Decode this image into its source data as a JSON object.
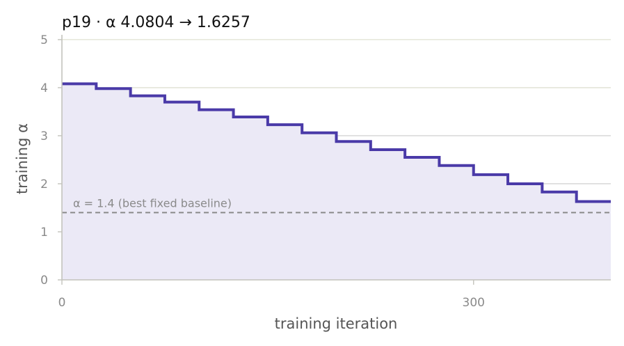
{
  "chart_data": {
    "type": "line",
    "step": true,
    "title": "p19   ·   α 4.0804 → 1.6257",
    "xlabel": "training iteration",
    "ylabel": "training α",
    "xlim": [
      0,
      400
    ],
    "ylim": [
      0,
      5.1
    ],
    "x_ticks": [
      0,
      300
    ],
    "y_ticks": [
      0,
      1,
      2,
      3,
      4,
      5
    ],
    "grid": "horizontal",
    "series": [
      {
        "color": "#4a3aa8",
        "fill_color": "#ebe9f6",
        "x": [
          0,
          25,
          50,
          75,
          100,
          125,
          150,
          175,
          200,
          225,
          250,
          275,
          300,
          325,
          350,
          375,
          400
        ],
        "y": [
          4.08,
          3.98,
          3.83,
          3.7,
          3.54,
          3.39,
          3.23,
          3.06,
          2.88,
          2.71,
          2.55,
          2.38,
          2.19,
          2.0,
          1.83,
          1.63,
          1.63
        ]
      }
    ],
    "baseline": {
      "y": 1.4,
      "label": "α = 1.4 (best fixed baseline)",
      "color": "#8a8a8a"
    }
  }
}
